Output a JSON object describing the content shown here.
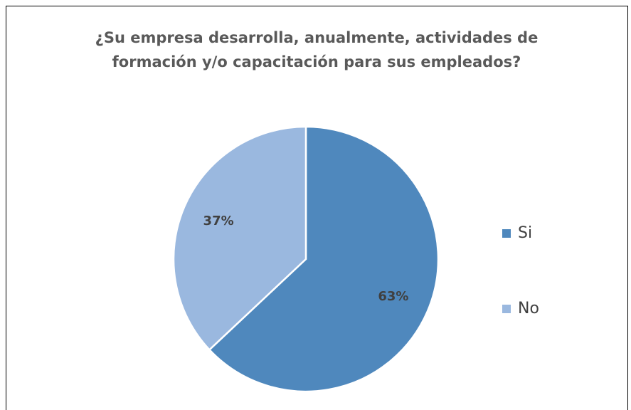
{
  "chart_data": {
    "type": "pie",
    "title": "¿Su empresa desarrolla, anualmente, actividades de formación y/o capacitación para sus empleados?",
    "categories": [
      "Si",
      "No"
    ],
    "values": [
      63,
      37
    ],
    "value_labels": [
      "63%",
      "37%"
    ],
    "colors": [
      "#4f88bd",
      "#9ab8df"
    ],
    "legend": "right"
  }
}
